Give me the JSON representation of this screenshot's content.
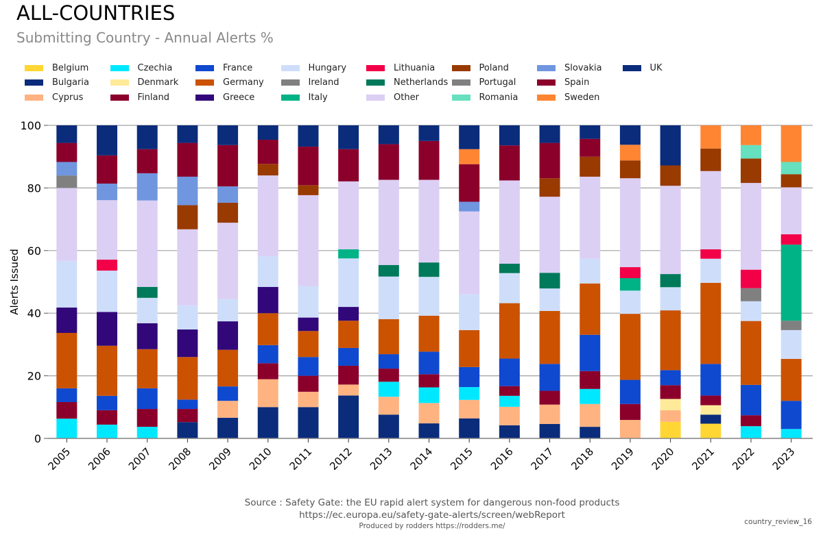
{
  "header": {
    "title": "ALL-COUNTRIES",
    "subtitle": "Submitting Country - Annual Alerts %"
  },
  "footer": {
    "source": "Source : Safety Gate: the EU rapid alert system for dangerous non-food products",
    "url": "https://ec.europa.eu/safety-gate-alerts/screen/webReport",
    "produced_by": "Produced by rodders https://rodders.me/",
    "reference": "country_review_16"
  },
  "legend": [
    {
      "name": "Belgium",
      "color": "#FFD633"
    },
    {
      "name": "Bulgaria",
      "color": "#0A2C7B"
    },
    {
      "name": "Cyprus",
      "color": "#FFB381"
    },
    {
      "name": "Czechia",
      "color": "#00E8FF"
    },
    {
      "name": "Denmark",
      "color": "#FFEA9A"
    },
    {
      "name": "Finland",
      "color": "#8B002B"
    },
    {
      "name": "France",
      "color": "#0F49CF"
    },
    {
      "name": "Germany",
      "color": "#CB5200"
    },
    {
      "name": "Greece",
      "color": "#32077A"
    },
    {
      "name": "Hungary",
      "color": "#CEDEFA"
    },
    {
      "name": "Ireland",
      "color": "#808080"
    },
    {
      "name": "Italy",
      "color": "#00B386"
    },
    {
      "name": "Lithuania",
      "color": "#F20048"
    },
    {
      "name": "Netherlands",
      "color": "#007A5A"
    },
    {
      "name": "Other",
      "color": "#DCCFF4"
    },
    {
      "name": "Poland",
      "color": "#993A00"
    },
    {
      "name": "Portugal",
      "color": "#808080"
    },
    {
      "name": "Romania",
      "color": "#66E0BE"
    },
    {
      "name": "Slovakia",
      "color": "#7096E0"
    },
    {
      "name": "Spain",
      "color": "#8B002B"
    },
    {
      "name": "Sweden",
      "color": "#FF8533"
    },
    {
      "name": "UK",
      "color": "#0A2C7B"
    }
  ],
  "chart_data": {
    "type": "bar",
    "stacked": true,
    "title": "ALL-COUNTRIES",
    "subtitle": "Submitting Country - Annual Alerts %",
    "xlabel": "",
    "ylabel": "Alerts Issued",
    "ylim": [
      0,
      100
    ],
    "yticks": [
      0,
      20,
      40,
      60,
      80,
      100
    ],
    "grid": true,
    "legend_position": "top",
    "categories": [
      "2005",
      "2006",
      "2007",
      "2008",
      "2009",
      "2010",
      "2011",
      "2012",
      "2013",
      "2014",
      "2015",
      "2016",
      "2017",
      "2018",
      "2019",
      "2020",
      "2021",
      "2022",
      "2023"
    ],
    "series": [
      {
        "name": "Belgium",
        "values": [
          0,
          0,
          0,
          0,
          0,
          0,
          0,
          0,
          0,
          0,
          0,
          0,
          0,
          0,
          0,
          5.3,
          4.7,
          0,
          0
        ]
      },
      {
        "name": "Bulgaria",
        "values": [
          0,
          0,
          0,
          5.2,
          6.6,
          10,
          10,
          13.7,
          7.6,
          4.8,
          6.4,
          4.2,
          4.6,
          3.7,
          0,
          0,
          2.9,
          0,
          0
        ]
      },
      {
        "name": "Cyprus",
        "values": [
          0,
          0,
          0,
          0,
          5.4,
          8.9,
          4.9,
          3.5,
          5.7,
          6.5,
          5.9,
          5.9,
          6.2,
          7.3,
          5.9,
          3.7,
          0,
          0,
          0
        ]
      },
      {
        "name": "Czechia",
        "values": [
          6.3,
          4.4,
          3.7,
          0,
          0,
          0,
          0,
          0,
          4.8,
          5,
          4.1,
          3.5,
          0,
          4.8,
          0,
          0,
          0,
          3.9,
          3
        ]
      },
      {
        "name": "Denmark",
        "values": [
          0,
          0,
          0,
          0,
          0,
          0,
          0,
          0,
          0,
          0,
          0,
          0,
          0,
          0,
          0,
          3.6,
          3,
          0,
          0
        ]
      },
      {
        "name": "Finland",
        "values": [
          5.3,
          4.6,
          5.7,
          4.2,
          0,
          5.1,
          5.1,
          6,
          4.2,
          4.2,
          0,
          3.1,
          4.4,
          5.7,
          5.1,
          4.4,
          3.1,
          3.5,
          0
        ]
      },
      {
        "name": "France",
        "values": [
          4.4,
          4.6,
          6.6,
          3,
          4.6,
          5.8,
          6,
          5.7,
          4.6,
          7.2,
          6.4,
          8.8,
          8.6,
          11.6,
          7.7,
          4.8,
          10.1,
          9.7,
          9
        ]
      },
      {
        "name": "Germany",
        "values": [
          17.7,
          16,
          12.5,
          13.6,
          11.7,
          10.2,
          8.3,
          8.7,
          11.2,
          11.5,
          11.8,
          17.7,
          16.9,
          16.4,
          21.1,
          19.1,
          25.9,
          20.4,
          13.4
        ]
      },
      {
        "name": "Greece",
        "values": [
          8.1,
          10.8,
          8.3,
          8.8,
          9.1,
          8.4,
          4.3,
          4.4,
          0,
          0,
          0,
          0,
          0,
          0,
          0,
          0,
          0,
          0,
          0
        ]
      },
      {
        "name": "Hungary",
        "values": [
          14.9,
          13.2,
          8.1,
          7.7,
          7.1,
          9.8,
          10,
          15.5,
          13.6,
          12.4,
          11.4,
          9.6,
          7.2,
          7.9,
          7.4,
          7.4,
          7.7,
          6.3,
          9.2
        ]
      },
      {
        "name": "Ireland",
        "values": [
          0,
          0,
          0,
          0,
          0,
          0,
          0,
          0,
          0,
          0,
          0,
          0,
          0,
          0,
          0,
          0,
          0,
          4.2,
          3
        ]
      },
      {
        "name": "Italy",
        "values": [
          0,
          0,
          0,
          0,
          0,
          0,
          0,
          2.9,
          0,
          0,
          0,
          0,
          0,
          0,
          4,
          0,
          0,
          0,
          24.3
        ]
      },
      {
        "name": "Lithuania",
        "values": [
          0,
          3.5,
          0,
          0,
          0,
          0,
          0,
          0,
          0,
          0,
          0,
          0,
          0,
          0,
          3.5,
          0,
          3,
          5.9,
          3.3
        ]
      },
      {
        "name": "Netherlands",
        "values": [
          0,
          0,
          3.5,
          0,
          0,
          0,
          0,
          0,
          3.7,
          4.6,
          0,
          3,
          5,
          0,
          0,
          4.2,
          0,
          0,
          0
        ]
      },
      {
        "name": "Other",
        "values": [
          23.3,
          19,
          27.6,
          24.3,
          24.4,
          25.8,
          29.1,
          21.7,
          27.2,
          26.4,
          26.5,
          26.6,
          24.3,
          26.2,
          28.4,
          28.2,
          25,
          27.7,
          15
        ]
      },
      {
        "name": "Poland",
        "values": [
          0,
          0,
          0,
          7.7,
          6.4,
          3.7,
          3.2,
          0,
          0,
          0,
          0,
          0,
          5.9,
          6.4,
          5.7,
          6.5,
          7.2,
          7.8,
          4.2
        ]
      },
      {
        "name": "Portugal",
        "values": [
          4,
          0,
          0,
          0,
          0,
          0,
          0,
          0,
          0,
          0,
          0,
          0,
          0,
          0,
          0,
          0,
          0,
          0,
          0
        ]
      },
      {
        "name": "Romania",
        "values": [
          0,
          0,
          0,
          0,
          0,
          0,
          0,
          0,
          0,
          0,
          0,
          0,
          0,
          0,
          0,
          0,
          0,
          4.3,
          3.9
        ]
      },
      {
        "name": "Slovakia",
        "values": [
          4.3,
          5.3,
          8.7,
          9.1,
          5.2,
          0,
          0,
          0,
          0,
          0,
          3.1,
          0,
          0,
          0,
          0,
          0,
          0,
          0,
          0
        ]
      },
      {
        "name": "Spain",
        "values": [
          6.1,
          9,
          7.7,
          10.8,
          13.2,
          7.7,
          12.3,
          10.3,
          11.4,
          12.4,
          12,
          11.2,
          11.3,
          5.7,
          0,
          0,
          0,
          0,
          0
        ]
      },
      {
        "name": "Sweden",
        "values": [
          0,
          0,
          0,
          0,
          0,
          0,
          0,
          0,
          0,
          0,
          4.8,
          0,
          0,
          0,
          5,
          0,
          7.4,
          6.3,
          11.7
        ]
      },
      {
        "name": "UK",
        "values": [
          5.6,
          9.6,
          7.6,
          5.6,
          6.3,
          4.6,
          6.8,
          7.6,
          6,
          5,
          7.6,
          6.4,
          5.6,
          4.3,
          6.2,
          12.8,
          0,
          0,
          0
        ]
      }
    ]
  }
}
